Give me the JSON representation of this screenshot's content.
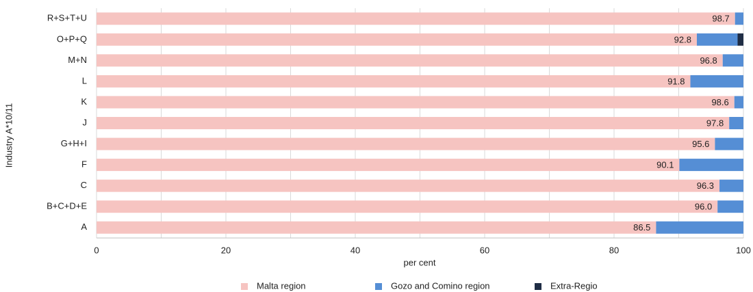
{
  "chart_data": {
    "type": "stacked-bar-horizontal",
    "y_label": "Industry A*10/11",
    "x_label": "per cent",
    "categories": [
      "R+S+T+U",
      "O+P+Q",
      "M+N",
      "L",
      "K",
      "J",
      "G+H+I",
      "F",
      "C",
      "B+C+D+E",
      "A"
    ],
    "series": [
      {
        "name": "Malta region",
        "color": "#f6c4c1",
        "values": [
          98.7,
          92.8,
          96.8,
          91.8,
          98.6,
          97.8,
          95.6,
          90.1,
          96.3,
          96.0,
          86.5
        ],
        "value_labels": [
          "98.7",
          "92.8",
          "96.8",
          "91.8",
          "98.6",
          "97.8",
          "95.6",
          "90.1",
          "96.3",
          "96.0",
          "86.5"
        ]
      },
      {
        "name": "Gozo and Comino region",
        "color": "#558ed5",
        "values": [
          1.3,
          6.3,
          3.2,
          8.2,
          1.4,
          2.2,
          4.4,
          9.9,
          3.7,
          4.0,
          13.5
        ]
      },
      {
        "name": "Extra-Regio",
        "color": "#1f2d45",
        "values": [
          0,
          0.9,
          0,
          0,
          0,
          0,
          0,
          0,
          0,
          0,
          0
        ]
      }
    ],
    "xlim": [
      0,
      100
    ],
    "xticks": [
      0,
      20,
      40,
      60,
      80,
      100
    ],
    "minor_xticks": [
      10,
      30,
      50,
      70,
      90
    ],
    "grid": true
  }
}
